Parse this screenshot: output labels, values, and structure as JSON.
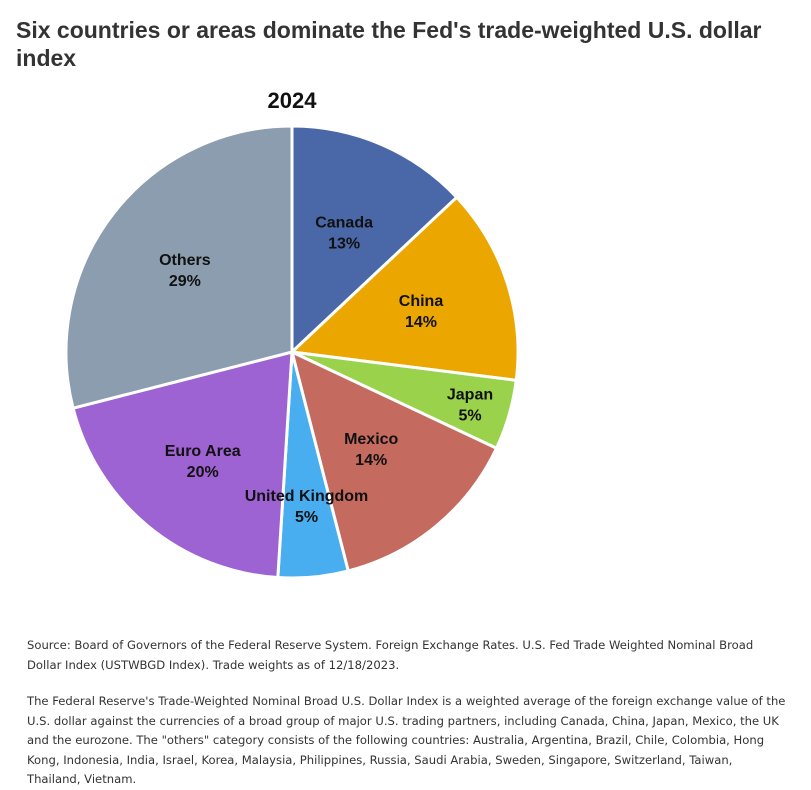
{
  "headline": "Six countries or areas dominate the Fed's trade-weighted U.S. dollar index",
  "chart_data": {
    "type": "pie",
    "title": "2024",
    "slices": [
      {
        "label": "Canada",
        "value": 13,
        "value_label": "13%",
        "color": "#4a68a8"
      },
      {
        "label": "China",
        "value": 14,
        "value_label": "14%",
        "color": "#eca600"
      },
      {
        "label": "Japan",
        "value": 5,
        "value_label": "5%",
        "color": "#9bd24c"
      },
      {
        "label": "Mexico",
        "value": 14,
        "value_label": "14%",
        "color": "#c46a5e"
      },
      {
        "label": "United Kingdom",
        "value": 5,
        "value_label": "5%",
        "color": "#48aef0"
      },
      {
        "label": "Euro Area",
        "value": 20,
        "value_label": "20%",
        "color": "#9e63d3"
      },
      {
        "label": "Others",
        "value": 29,
        "value_label": "29%",
        "color": "#8b9dae"
      }
    ],
    "legend": "none",
    "start_angle": "12 o'clock",
    "direction": "clockwise"
  },
  "source_note": "Source: Board of Governors of the Federal Reserve System. Foreign Exchange Rates. U.S. Fed Trade Weighted Nominal Broad Dollar Index (USTWBGD Index). Trade weights as of 12/18/2023.",
  "description_note": "The Federal Reserve's Trade-Weighted Nominal Broad U.S. Dollar Index is a weighted average of the foreign exchange value of the U.S. dollar against the currencies of a broad group of major U.S. trading partners, including Canada, China, Japan, Mexico, the UK and the eurozone. The \"others\" category consists of the following countries: Australia, Argentina, Brazil, Chile, Colombia, Hong Kong, Indonesia, India, Israel, Korea, Malaysia, Philippines, Russia, Saudi Arabia, Sweden, Singapore, Switzerland, Taiwan, Thailand, Vietnam."
}
